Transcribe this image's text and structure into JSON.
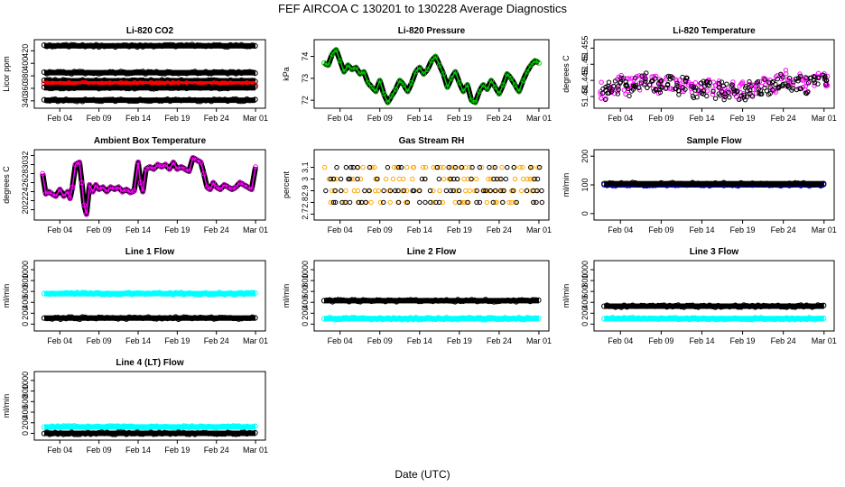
{
  "title": "FEF   AIRCOA C   130201 to 130228   Average Diagnostics",
  "xlabel": "Date (UTC)",
  "date_ticks": [
    "Feb 04",
    "Feb 09",
    "Feb 14",
    "Feb 19",
    "Feb 24",
    "Mar 01"
  ],
  "date_tick_days": [
    3,
    8,
    13,
    18,
    23,
    28
  ],
  "xlim_days": [
    0.2,
    28.8
  ],
  "colors": {
    "black": "#000000",
    "red": "#ff0000",
    "magenta": "#ff00ff",
    "green": "#00cc00",
    "orange": "#ffa500",
    "blue": "#0000ff",
    "cyan": "#00ffff"
  },
  "chart_data": [
    {
      "type": "scatter",
      "title": "Li-820 CO2",
      "ylabel": "Licor ppm",
      "ylim": [
        334,
        432
      ],
      "yticks": [
        340,
        360,
        380,
        400,
        420
      ],
      "series": [
        {
          "name": "cal-high",
          "color": "#000000",
          "level": 428
        },
        {
          "name": "cal-upper",
          "color": "#000000",
          "level": 385
        },
        {
          "name": "sample-upper",
          "color": "#000000",
          "level": 372
        },
        {
          "name": "sample",
          "color": "#ff0000",
          "level": 367
        },
        {
          "name": "sample-lower",
          "color": "#000000",
          "level": 361
        },
        {
          "name": "cal-low",
          "color": "#000000",
          "level": 341
        }
      ]
    },
    {
      "type": "line",
      "title": "Li-820 Pressure",
      "ylabel": "kPa",
      "ylim": [
        71.8,
        74.6
      ],
      "yticks": [
        72.0,
        73.0,
        74.0
      ],
      "series": [
        {
          "name": "pressure",
          "color": "#00cc00",
          "x": [
            1,
            1.5,
            2,
            2.5,
            3,
            3.5,
            4,
            4.5,
            5,
            5.5,
            6,
            6.5,
            7,
            7.5,
            8,
            8.5,
            9,
            9.5,
            10,
            10.5,
            11,
            11.5,
            12,
            12.5,
            13,
            13.5,
            14,
            14.5,
            15,
            15.5,
            16,
            16.5,
            17,
            17.5,
            18,
            18.5,
            19,
            19.5,
            20,
            20.5,
            21,
            21.5,
            22,
            22.5,
            23,
            23.5,
            24,
            24.5,
            25,
            25.5,
            26,
            26.5,
            27,
            27.5,
            28
          ],
          "y": [
            73.7,
            73.6,
            74.1,
            74.3,
            73.8,
            73.3,
            73.6,
            73.4,
            73.5,
            73.2,
            73.3,
            72.8,
            72.6,
            72.4,
            72.9,
            72.3,
            71.9,
            72.2,
            72.5,
            72.9,
            72.7,
            72.4,
            72.8,
            73.3,
            73.5,
            73.2,
            73.4,
            73.8,
            74.0,
            73.6,
            73.2,
            72.6,
            73.0,
            73.3,
            72.8,
            72.4,
            72.7,
            72.0,
            71.9,
            72.4,
            72.7,
            72.5,
            72.9,
            72.6,
            72.3,
            72.7,
            73.2,
            73.0,
            72.7,
            72.4,
            72.9,
            73.3,
            73.6,
            73.8,
            73.7
          ]
        }
      ]
    },
    {
      "type": "scatter",
      "title": "Li-820 Temperature",
      "ylabel": "degrees C",
      "ylim": [
        51.4375,
        51.4565
      ],
      "yticks": [
        51.44,
        51.445,
        51.45,
        51.455
      ],
      "series": [
        {
          "name": "temp-a",
          "color": "#ff00ff",
          "x": [
            1,
            2,
            3,
            4,
            5,
            6,
            7,
            8,
            9,
            10,
            11,
            12,
            13,
            14,
            15,
            16,
            17,
            18,
            19,
            20,
            21,
            22,
            23,
            24,
            25,
            26,
            27,
            28
          ],
          "y": [
            51.442,
            51.443,
            51.444,
            51.443,
            51.4445,
            51.4455,
            51.444,
            51.443,
            51.4445,
            51.4435,
            51.444,
            51.4425,
            51.4435,
            51.443,
            51.4425,
            51.442,
            51.4425,
            51.442,
            51.443,
            51.4425,
            51.4435,
            51.444,
            51.4455,
            51.445,
            51.4445,
            51.444,
            51.445,
            51.4445
          ]
        },
        {
          "name": "temp-b",
          "color": "#000000",
          "x": [
            1,
            2,
            3,
            4,
            5,
            6,
            7,
            8,
            9,
            10,
            11,
            12,
            13,
            14,
            15,
            16,
            17,
            18,
            19,
            20,
            21,
            22,
            23,
            24,
            25,
            26,
            27,
            28
          ],
          "y": [
            51.441,
            51.4425,
            51.4435,
            51.442,
            51.444,
            51.445,
            51.4435,
            51.4425,
            51.444,
            51.443,
            51.4435,
            51.442,
            51.443,
            51.4425,
            51.442,
            51.4415,
            51.442,
            51.4415,
            51.4425,
            51.442,
            51.443,
            51.4435,
            51.445,
            51.4445,
            51.444,
            51.4435,
            51.4445,
            51.444
          ]
        }
      ]
    },
    {
      "type": "line",
      "title": "Ambient Box Temperature",
      "ylabel": "degrees C",
      "ylim": [
        18.5,
        32.5
      ],
      "yticks": [
        20,
        22,
        24,
        26,
        28,
        30,
        32
      ],
      "series": [
        {
          "name": "box-temp",
          "color": "#ff00ff",
          "x": [
            0.8,
            1.2,
            1.6,
            2.0,
            2.5,
            3.0,
            3.5,
            4.0,
            4.3,
            4.6,
            5.0,
            5.5,
            5.8,
            6.1,
            6.4,
            6.8,
            7.2,
            7.6,
            8,
            8.5,
            9,
            9.5,
            10,
            10.5,
            11,
            11.5,
            12,
            12.5,
            13,
            13.3,
            13.6,
            14,
            14.5,
            15,
            15.5,
            16,
            16.5,
            17,
            17.5,
            18,
            18.5,
            19,
            19.5,
            20,
            20.5,
            21,
            21.4,
            21.8,
            22.2,
            22.6,
            23,
            23.5,
            24,
            24.5,
            25,
            25.5,
            26,
            26.5,
            27,
            27.5,
            28
          ],
          "y": [
            28.0,
            23.5,
            24.0,
            23.5,
            23.0,
            24.5,
            23.0,
            24.0,
            22.5,
            25.0,
            30.0,
            30.5,
            26.0,
            21.0,
            19.0,
            25.5,
            24.0,
            25.5,
            24.5,
            25.0,
            24.0,
            25.0,
            24.5,
            25.0,
            24.0,
            24.5,
            23.8,
            24.2,
            30.5,
            26.0,
            24.0,
            29.0,
            29.5,
            29.0,
            30.0,
            29.5,
            30.0,
            29.0,
            30.5,
            29.0,
            29.5,
            29.0,
            28.5,
            31.5,
            31.0,
            30.5,
            28.0,
            25.0,
            24.5,
            26.0,
            25.0,
            24.5,
            25.5,
            25.0,
            24.5,
            25.0,
            26.0,
            25.5,
            25.0,
            24.5,
            29.5
          ]
        }
      ]
    },
    {
      "type": "scatter",
      "title": "Gas Stream RH",
      "ylabel": "percent",
      "ylim": [
        2.68,
        3.22
      ],
      "yticks": [
        2.7,
        2.8,
        2.9,
        3.0,
        3.1
      ],
      "series": [
        {
          "name": "rh-a",
          "color": "#ffa500",
          "levels": [
            2.8,
            2.9,
            3.0,
            3.1
          ]
        },
        {
          "name": "rh-b",
          "color": "#000000",
          "levels": [
            2.8,
            2.9,
            3.0,
            3.1
          ]
        }
      ]
    },
    {
      "type": "line",
      "title": "Sample Flow",
      "ylabel": "ml/min",
      "ylim": [
        -10,
        210
      ],
      "yticks": [
        0,
        100,
        200
      ],
      "series": [
        {
          "name": "flow-a",
          "color": "#0000ff",
          "level": 100
        },
        {
          "name": "flow-b",
          "color": "#000000",
          "level": 104
        }
      ]
    },
    {
      "type": "line",
      "title": "Line 1 Flow",
      "ylabel": "ml/min",
      "ylim": [
        -60,
        1100
      ],
      "yticks": [
        0,
        200,
        400,
        600,
        800,
        1000
      ],
      "series": [
        {
          "name": "line1-a",
          "color": "#00ffff",
          "level": 560
        },
        {
          "name": "line1-b",
          "color": "#000000",
          "level": 110
        }
      ]
    },
    {
      "type": "line",
      "title": "Line 2 Flow",
      "ylabel": "ml/min",
      "ylim": [
        -60,
        1100
      ],
      "yticks": [
        0,
        200,
        400,
        600,
        800,
        1000
      ],
      "series": [
        {
          "name": "line2-a",
          "color": "#000000",
          "level": 430
        },
        {
          "name": "line2-b",
          "color": "#00ffff",
          "level": 100
        }
      ]
    },
    {
      "type": "line",
      "title": "Line 3 Flow",
      "ylabel": "ml/min",
      "ylim": [
        -60,
        1100
      ],
      "yticks": [
        0,
        200,
        400,
        600,
        800,
        1000
      ],
      "series": [
        {
          "name": "line3-a",
          "color": "#000000",
          "level": 330
        },
        {
          "name": "line3-b",
          "color": "#00ffff",
          "level": 100
        }
      ]
    },
    {
      "type": "line",
      "title": "Line 4 (LT) Flow",
      "ylabel": "ml/min",
      "ylim": [
        -60,
        1100
      ],
      "yticks": [
        0,
        200,
        400,
        600,
        800,
        1000
      ],
      "series": [
        {
          "name": "line4-a",
          "color": "#00ffff",
          "level": 120
        },
        {
          "name": "line4-b",
          "color": "#000000",
          "level": 0
        }
      ]
    }
  ]
}
